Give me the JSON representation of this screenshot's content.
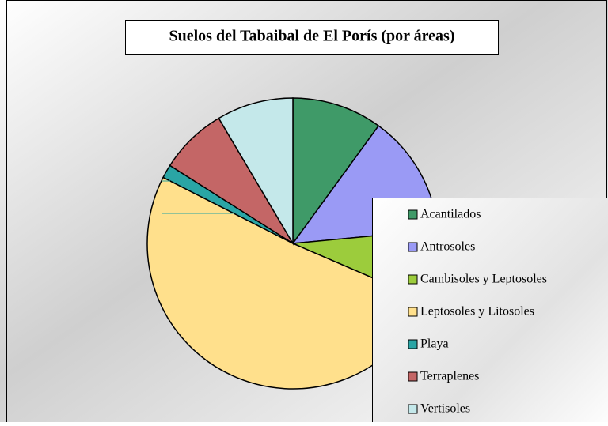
{
  "chart_data": {
    "type": "pie",
    "title": "Suelos del Tabaibal de El Porís (por áreas)",
    "categories": [
      "Acantilados",
      "Antrosoles",
      "Cambisoles y Leptosoles",
      "Leptosoles y Litosoles",
      "Playa",
      "Terraplenes",
      "Vertisoles"
    ],
    "values": [
      10,
      13.5,
      8,
      51,
      1.5,
      7.5,
      8.5
    ],
    "colors": [
      "#3f9a68",
      "#9a9af5",
      "#9ccc3c",
      "#ffe08c",
      "#2aa5a5",
      "#c46666",
      "#c4e8ea"
    ]
  }
}
